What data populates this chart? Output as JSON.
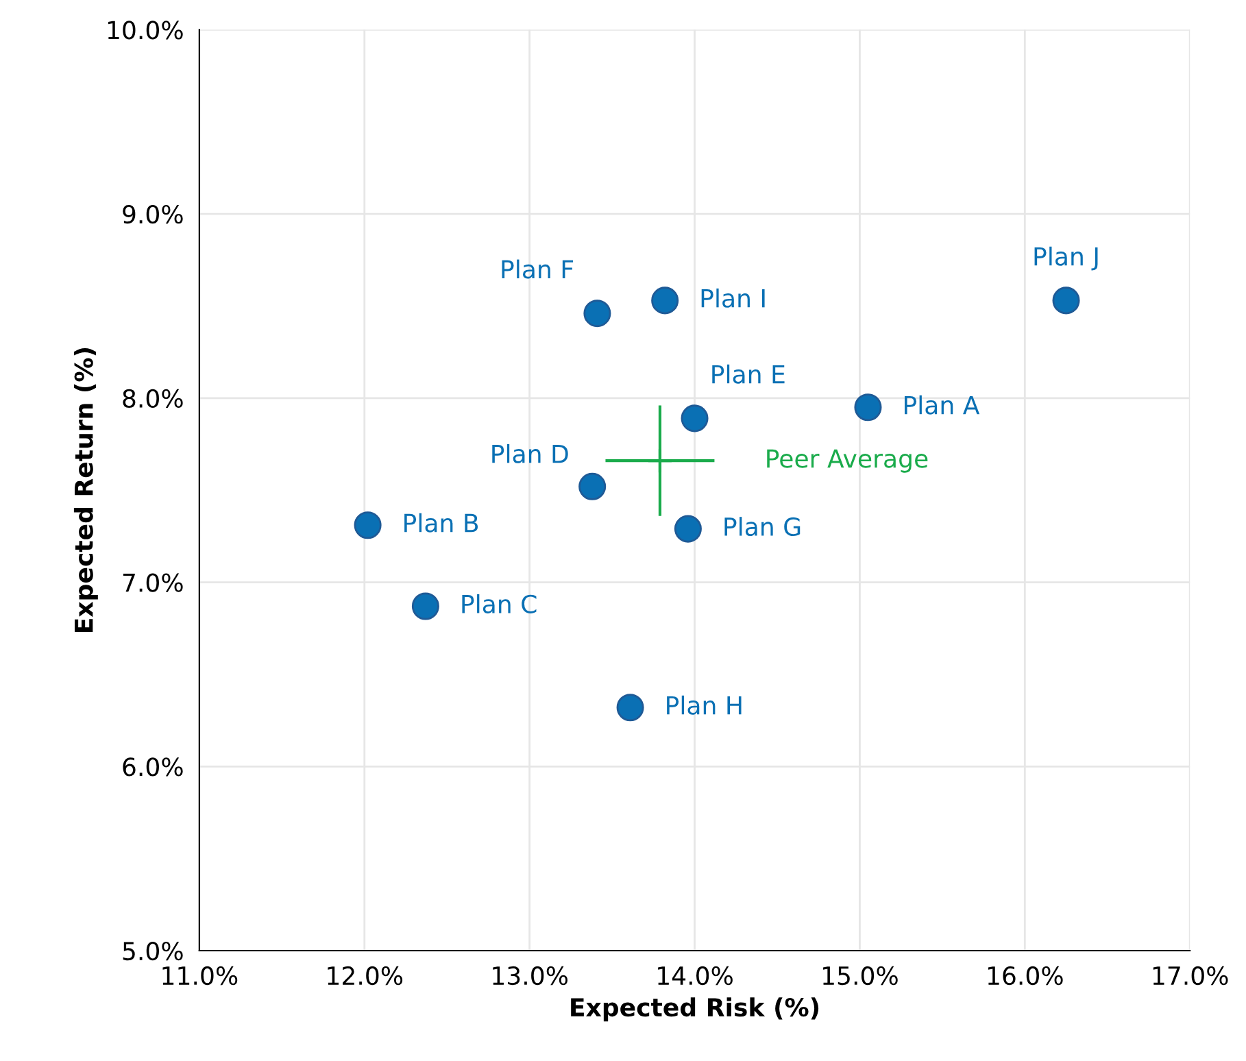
{
  "chart_data": {
    "type": "scatter",
    "xlabel": "Expected Risk (%)",
    "ylabel": "Expected Return (%)",
    "series": [
      {
        "color": "#0a70b4",
        "marker": "circle",
        "x": [
          15.05,
          12.02,
          12.37,
          13.38,
          14.0,
          13.41,
          13.96,
          13.61,
          13.82,
          16.25
        ],
        "values": [
          7.95,
          7.31,
          6.87,
          7.52,
          7.89,
          8.46,
          7.29,
          6.32,
          8.53,
          8.53
        ]
      },
      {
        "name": "Peer Average",
        "color": "#1aab4b",
        "marker": "cross",
        "x": [
          13.79
        ],
        "values": [
          7.66
        ],
        "errors": [
          0.3
        ],
        "xerrors": [
          0.33
        ]
      }
    ],
    "annotations": [
      {
        "text": "Plan A",
        "x": 15.05,
        "y": 7.95
      },
      {
        "text": "Plan B",
        "x": 12.02,
        "y": 7.31
      },
      {
        "text": "Plan C",
        "x": 12.37,
        "y": 6.87
      },
      {
        "text": "Plan D",
        "x": 13.38,
        "y": 7.52
      },
      {
        "text": "Plan E",
        "x": 14.0,
        "y": 7.89
      },
      {
        "text": "Plan F",
        "x": 13.41,
        "y": 8.46
      },
      {
        "text": "Plan G",
        "x": 13.96,
        "y": 7.29
      },
      {
        "text": "Plan H",
        "x": 13.61,
        "y": 6.32
      },
      {
        "text": "Plan I",
        "x": 13.82,
        "y": 8.53
      },
      {
        "text": "Plan J",
        "x": 16.25,
        "y": 8.53
      }
    ],
    "xlim": [
      11,
      17
    ],
    "ylim": [
      5,
      10
    ],
    "xticks": [
      {
        "value": 11,
        "label": "11.0%"
      },
      {
        "value": 12,
        "label": "12.0%"
      },
      {
        "value": 13,
        "label": "13.0%"
      },
      {
        "value": 14,
        "label": "14.0%"
      },
      {
        "value": 15,
        "label": "15.0%"
      },
      {
        "value": 16,
        "label": "16.0%"
      },
      {
        "value": 17,
        "label": "17.0%"
      }
    ],
    "yticks": [
      {
        "value": 5,
        "label": "5.0%"
      },
      {
        "value": 6,
        "label": "6.0%"
      },
      {
        "value": 7,
        "label": "7.0%"
      },
      {
        "value": 8,
        "label": "8.0%"
      },
      {
        "value": 9,
        "label": "9.0%"
      },
      {
        "value": 10,
        "label": "10.0%"
      }
    ],
    "grid": true,
    "legend": false
  }
}
